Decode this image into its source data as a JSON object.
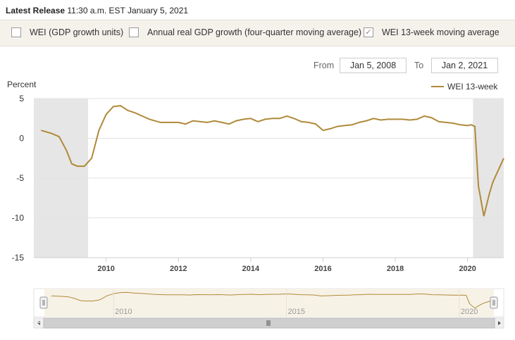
{
  "release": {
    "label": "Latest Release",
    "value": "11:30 a.m. EST January 5, 2021"
  },
  "options": [
    {
      "label": "WEI (GDP growth units)",
      "checked": false
    },
    {
      "label": "Annual real GDP growth (four-quarter moving average)",
      "checked": false
    },
    {
      "label": "WEI 13-week moving average",
      "checked": true
    }
  ],
  "range": {
    "from_label": "From",
    "from_value": "Jan 5, 2008",
    "to_label": "To",
    "to_value": "Jan 2, 2021"
  },
  "colors": {
    "series": "#b08a3a",
    "recession": "#e6e6e6",
    "grid": "#e3e3e3",
    "navigator_bg": "#f7f2e6"
  },
  "chart_data": {
    "type": "line",
    "ylabel": "Percent",
    "ylim": [
      -15,
      5
    ],
    "yticks": [
      "5",
      "0",
      "-5",
      "-10",
      "-15"
    ],
    "xlim": [
      2008.0,
      2021.0
    ],
    "xticks": [
      "2010",
      "2012",
      "2014",
      "2016",
      "2018",
      "2020"
    ],
    "legend": {
      "position": "top-right",
      "entries": [
        "WEI 13-week"
      ]
    },
    "recessions": [
      [
        2008.0,
        2009.5
      ],
      [
        2020.15,
        2021.0
      ]
    ],
    "series": [
      {
        "name": "WEI 13-week",
        "x": [
          2008.2,
          2008.5,
          2008.7,
          2008.9,
          2009.05,
          2009.2,
          2009.4,
          2009.6,
          2009.8,
          2010.0,
          2010.2,
          2010.4,
          2010.6,
          2010.8,
          2011.0,
          2011.2,
          2011.5,
          2012.0,
          2012.2,
          2012.4,
          2012.6,
          2012.8,
          2013.0,
          2013.2,
          2013.4,
          2013.6,
          2013.8,
          2014.0,
          2014.2,
          2014.4,
          2014.6,
          2014.8,
          2015.0,
          2015.2,
          2015.4,
          2015.6,
          2015.8,
          2016.0,
          2016.2,
          2016.4,
          2016.6,
          2016.8,
          2017.0,
          2017.2,
          2017.4,
          2017.6,
          2017.8,
          2018.0,
          2018.2,
          2018.4,
          2018.6,
          2018.8,
          2019.0,
          2019.2,
          2019.4,
          2019.6,
          2019.8,
          2020.0,
          2020.1,
          2020.2,
          2020.3,
          2020.45,
          2020.6,
          2020.7,
          2020.85,
          2021.0
        ],
        "y": [
          1.0,
          0.6,
          0.2,
          -1.5,
          -3.2,
          -3.5,
          -3.5,
          -2.5,
          1.0,
          3.0,
          4.0,
          4.1,
          3.5,
          3.2,
          2.8,
          2.4,
          2.0,
          2.0,
          1.8,
          2.2,
          2.1,
          2.0,
          2.2,
          2.0,
          1.8,
          2.2,
          2.4,
          2.5,
          2.1,
          2.4,
          2.5,
          2.5,
          2.8,
          2.5,
          2.1,
          2.0,
          1.8,
          1.0,
          1.2,
          1.5,
          1.6,
          1.7,
          2.0,
          2.2,
          2.5,
          2.3,
          2.4,
          2.4,
          2.4,
          2.3,
          2.4,
          2.8,
          2.6,
          2.1,
          2.0,
          1.9,
          1.7,
          1.6,
          1.7,
          1.5,
          -6.0,
          -9.8,
          -7.0,
          -5.5,
          -4.0,
          -2.5
        ]
      }
    ]
  },
  "navigator": {
    "labels": [
      "2010",
      "2015",
      "2020"
    ]
  }
}
